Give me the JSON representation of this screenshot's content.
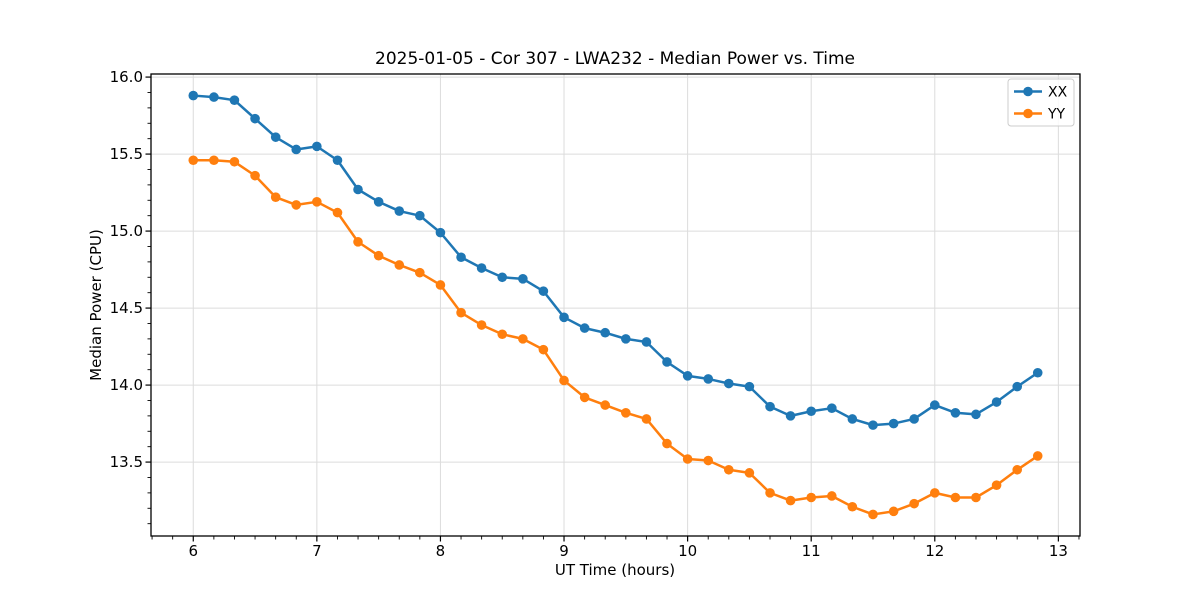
{
  "window": {
    "background": "#ffffff"
  },
  "chart_data": {
    "type": "line",
    "title": "2025-01-05 - Cor 307 - LWA232 - Median Power vs. Time",
    "xlabel": "UT Time (hours)",
    "ylabel": "Median Power (CPU)",
    "xlim": [
      5.658,
      13.175
    ],
    "ylim": [
      13.02,
      16.02
    ],
    "x_ticks": [
      6,
      7,
      8,
      9,
      10,
      11,
      12,
      13
    ],
    "x_tick_labels": [
      "6",
      "7",
      "8",
      "9",
      "10",
      "11",
      "12",
      "13"
    ],
    "y_ticks": [
      13.5,
      14.0,
      14.5,
      15.0,
      15.5,
      16.0
    ],
    "y_tick_labels": [
      "13.5",
      "14.0",
      "14.5",
      "15.0",
      "15.5",
      "16.0"
    ],
    "x_minor_interval": 0.1666667,
    "y_minor_interval": 0.1,
    "grid": "major-only",
    "legend": {
      "position": "upper-right",
      "entries": [
        "XX",
        "YY"
      ]
    },
    "x": [
      6.0,
      6.167,
      6.333,
      6.5,
      6.667,
      6.833,
      7.0,
      7.167,
      7.333,
      7.5,
      7.667,
      7.833,
      8.0,
      8.167,
      8.333,
      8.5,
      8.667,
      8.833,
      9.0,
      9.167,
      9.333,
      9.5,
      9.667,
      9.833,
      10.0,
      10.167,
      10.333,
      10.5,
      10.667,
      10.833,
      11.0,
      11.167,
      11.333,
      11.5,
      11.667,
      11.833,
      12.0,
      12.167,
      12.333,
      12.5,
      12.667,
      12.833
    ],
    "series": [
      {
        "name": "XX",
        "color": "#1f77b4",
        "marker": "circle",
        "values": [
          15.88,
          15.87,
          15.85,
          15.73,
          15.61,
          15.53,
          15.55,
          15.46,
          15.27,
          15.19,
          15.13,
          15.1,
          14.99,
          14.83,
          14.76,
          14.7,
          14.69,
          14.61,
          14.44,
          14.37,
          14.34,
          14.3,
          14.28,
          14.15,
          14.06,
          14.04,
          14.01,
          13.99,
          13.86,
          13.8,
          13.83,
          13.85,
          13.78,
          13.74,
          13.75,
          13.78,
          13.87,
          13.82,
          13.81,
          13.89,
          13.99,
          14.08
        ]
      },
      {
        "name": "YY",
        "color": "#ff7f0e",
        "marker": "circle",
        "values": [
          15.46,
          15.46,
          15.45,
          15.36,
          15.22,
          15.17,
          15.19,
          15.12,
          14.93,
          14.84,
          14.78,
          14.73,
          14.65,
          14.47,
          14.39,
          14.33,
          14.3,
          14.23,
          14.03,
          13.92,
          13.87,
          13.82,
          13.78,
          13.62,
          13.52,
          13.51,
          13.45,
          13.43,
          13.3,
          13.25,
          13.27,
          13.28,
          13.21,
          13.16,
          13.18,
          13.23,
          13.3,
          13.27,
          13.27,
          13.35,
          13.45,
          13.54
        ]
      }
    ]
  }
}
